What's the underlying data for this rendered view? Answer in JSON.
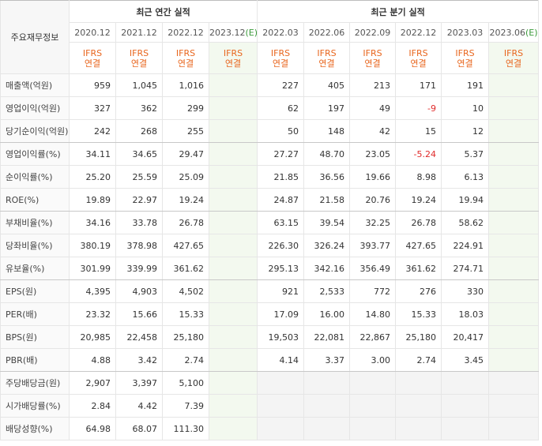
{
  "table": {
    "corner": "주요재무정보",
    "sections": [
      {
        "title": "최근 연간 실적",
        "columns": [
          {
            "period": "2020.12",
            "accounting": "IFRS",
            "scope": "연결"
          },
          {
            "period": "2021.12",
            "accounting": "IFRS",
            "scope": "연결"
          },
          {
            "period": "2022.12",
            "accounting": "IFRS",
            "scope": "연결"
          },
          {
            "period": "2023.12",
            "estimate": "(E)",
            "accounting": "IFRS",
            "scope": "연결"
          }
        ]
      },
      {
        "title": "최근 분기 실적",
        "columns": [
          {
            "period": "2022.03",
            "accounting": "IFRS",
            "scope": "연결"
          },
          {
            "period": "2022.06",
            "accounting": "IFRS",
            "scope": "연결"
          },
          {
            "period": "2022.09",
            "accounting": "IFRS",
            "scope": "연결"
          },
          {
            "period": "2022.12",
            "accounting": "IFRS",
            "scope": "연결"
          },
          {
            "period": "2023.03",
            "accounting": "IFRS",
            "scope": "연결"
          },
          {
            "period": "2023.06",
            "estimate": "(E)",
            "accounting": "IFRS",
            "scope": "연결"
          }
        ]
      }
    ],
    "groups": [
      {
        "rows": [
          {
            "label": "매출액(억원)",
            "cells": [
              "959",
              "1,045",
              "1,016",
              null,
              "227",
              "405",
              "213",
              "171",
              "191",
              null
            ]
          },
          {
            "label": "영업이익(억원)",
            "cells": [
              "327",
              "362",
              "299",
              null,
              "62",
              "197",
              "49",
              "-9",
              "10",
              null
            ]
          },
          {
            "label": "당기순이익(억원)",
            "cells": [
              "242",
              "268",
              "255",
              null,
              "50",
              "148",
              "42",
              "15",
              "12",
              null
            ]
          }
        ]
      },
      {
        "rows": [
          {
            "label": "영업이익률(%)",
            "cells": [
              "34.11",
              "34.65",
              "29.47",
              null,
              "27.27",
              "48.70",
              "23.05",
              "-5.24",
              "5.37",
              null
            ]
          },
          {
            "label": "순이익률(%)",
            "cells": [
              "25.20",
              "25.59",
              "25.09",
              null,
              "21.85",
              "36.56",
              "19.66",
              "8.98",
              "6.13",
              null
            ]
          },
          {
            "label": "ROE(%)",
            "cells": [
              "19.89",
              "22.97",
              "19.24",
              null,
              "24.87",
              "21.58",
              "20.76",
              "19.24",
              "19.94",
              null
            ]
          }
        ]
      },
      {
        "rows": [
          {
            "label": "부채비율(%)",
            "cells": [
              "34.16",
              "33.78",
              "26.78",
              null,
              "63.15",
              "39.54",
              "32.25",
              "26.78",
              "58.62",
              null
            ]
          },
          {
            "label": "당좌비율(%)",
            "cells": [
              "380.19",
              "378.98",
              "427.65",
              null,
              "226.30",
              "326.24",
              "393.77",
              "427.65",
              "224.91",
              null
            ]
          },
          {
            "label": "유보율(%)",
            "cells": [
              "301.99",
              "339.99",
              "361.62",
              null,
              "295.13",
              "342.16",
              "356.49",
              "361.62",
              "274.71",
              null
            ]
          }
        ]
      },
      {
        "rows": [
          {
            "label": "EPS(원)",
            "cells": [
              "4,395",
              "4,903",
              "4,502",
              null,
              "921",
              "2,533",
              "772",
              "276",
              "330",
              null
            ]
          },
          {
            "label": "PER(배)",
            "cells": [
              "23.32",
              "15.66",
              "15.33",
              null,
              "17.09",
              "16.00",
              "14.80",
              "15.33",
              "18.03",
              null
            ]
          },
          {
            "label": "BPS(원)",
            "cells": [
              "20,985",
              "22,458",
              "25,180",
              null,
              "19,503",
              "22,081",
              "22,867",
              "25,180",
              "20,417",
              null
            ]
          },
          {
            "label": "PBR(배)",
            "cells": [
              "4.88",
              "3.42",
              "2.74",
              null,
              "4.14",
              "3.37",
              "3.00",
              "2.74",
              "3.45",
              null
            ]
          }
        ]
      },
      {
        "rows": [
          {
            "label": "주당배당금(원)",
            "cells": [
              "2,907",
              "3,397",
              "5,100",
              null,
              null,
              null,
              null,
              null,
              null,
              null
            ]
          },
          {
            "label": "시가배당률(%)",
            "cells": [
              "2.84",
              "4.42",
              "7.39",
              null,
              null,
              null,
              null,
              null,
              null,
              null
            ]
          },
          {
            "label": "배당성향(%)",
            "cells": [
              "64.98",
              "68.07",
              "111.30",
              null,
              null,
              null,
              null,
              null,
              null,
              null
            ]
          }
        ]
      }
    ]
  }
}
